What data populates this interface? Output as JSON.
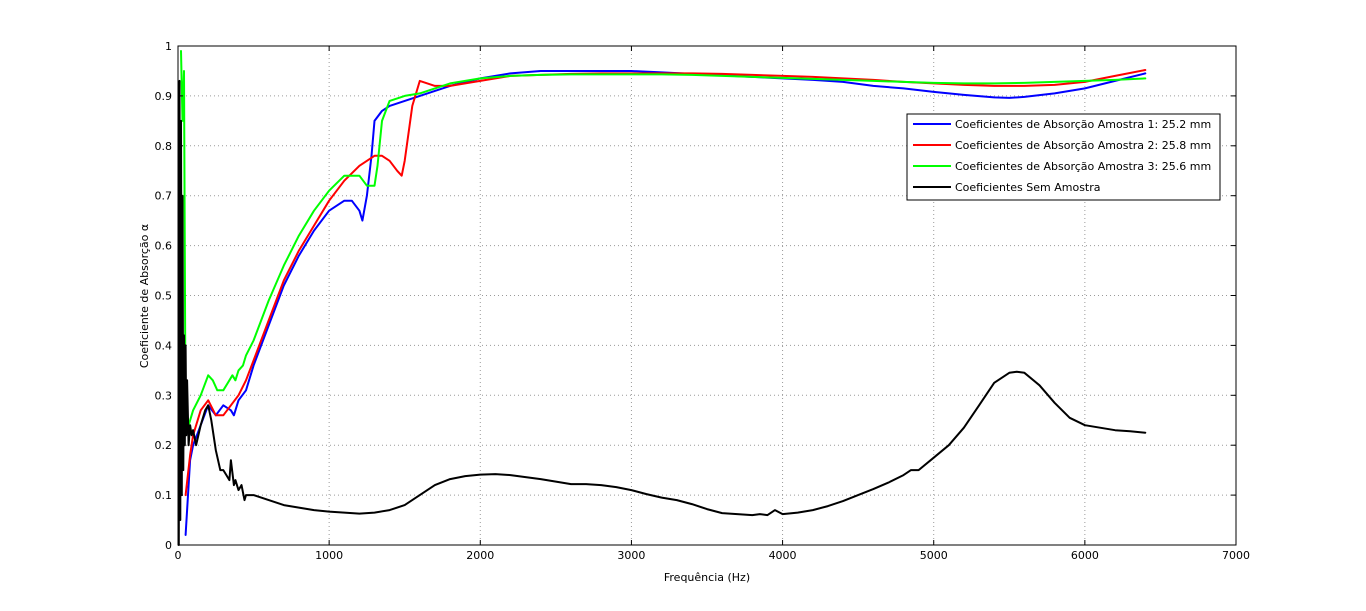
{
  "chart_data": {
    "type": "line",
    "title": "",
    "xlabel": "Frequência (Hz)",
    "ylabel": "Coeficiente de Absorção α",
    "xlim": [
      0,
      7000
    ],
    "ylim": [
      0,
      1
    ],
    "xticks": [
      0,
      1000,
      2000,
      3000,
      4000,
      5000,
      6000,
      7000
    ],
    "xtick_labels": [
      "0",
      "1000",
      "2000",
      "3000",
      "4000",
      "5000",
      "6000",
      "7000"
    ],
    "yticks": [
      0,
      0.1,
      0.2,
      0.3,
      0.4,
      0.5,
      0.6,
      0.7,
      0.8,
      0.9,
      1
    ],
    "ytick_labels": [
      "0",
      "0.1",
      "0.2",
      "0.3",
      "0.4",
      "0.5",
      "0.6",
      "0.7",
      "0.8",
      "0.9",
      "1"
    ],
    "grid": true,
    "legend_position": "top-right",
    "series": [
      {
        "name": "Coeficientes de Absorção Amostra 1: 25.2 mm",
        "color": "#0000ff",
        "x": [
          50,
          80,
          100,
          150,
          200,
          250,
          300,
          350,
          370,
          400,
          450,
          500,
          600,
          700,
          800,
          900,
          1000,
          1100,
          1150,
          1200,
          1220,
          1250,
          1280,
          1300,
          1350,
          1400,
          1500,
          1600,
          1700,
          1800,
          2000,
          2200,
          2400,
          2600,
          2800,
          3000,
          3200,
          3400,
          3600,
          3800,
          4000,
          4200,
          4400,
          4600,
          4800,
          5000,
          5200,
          5400,
          5500,
          5600,
          5800,
          6000,
          6200,
          6400
        ],
        "y": [
          0.02,
          0.17,
          0.2,
          0.24,
          0.28,
          0.26,
          0.28,
          0.27,
          0.26,
          0.29,
          0.31,
          0.36,
          0.44,
          0.52,
          0.58,
          0.63,
          0.67,
          0.69,
          0.69,
          0.67,
          0.65,
          0.7,
          0.78,
          0.85,
          0.87,
          0.88,
          0.89,
          0.9,
          0.91,
          0.92,
          0.935,
          0.945,
          0.95,
          0.95,
          0.95,
          0.95,
          0.947,
          0.944,
          0.941,
          0.938,
          0.935,
          0.932,
          0.928,
          0.92,
          0.915,
          0.908,
          0.902,
          0.897,
          0.896,
          0.898,
          0.905,
          0.915,
          0.93,
          0.945
        ]
      },
      {
        "name": "Coeficientes de Absorção Amostra 2: 25.8 mm",
        "color": "#ff0000",
        "x": [
          50,
          80,
          100,
          150,
          200,
          250,
          300,
          350,
          400,
          450,
          500,
          600,
          700,
          800,
          900,
          1000,
          1100,
          1200,
          1300,
          1350,
          1400,
          1450,
          1480,
          1500,
          1550,
          1600,
          1650,
          1700,
          1800,
          2000,
          2200,
          2400,
          2600,
          2800,
          3000,
          3200,
          3400,
          3600,
          3800,
          4000,
          4200,
          4400,
          4600,
          4800,
          5000,
          5200,
          5400,
          5600,
          5800,
          6000,
          6200,
          6400
        ],
        "y": [
          0.1,
          0.18,
          0.22,
          0.27,
          0.29,
          0.26,
          0.26,
          0.28,
          0.3,
          0.33,
          0.37,
          0.45,
          0.53,
          0.59,
          0.64,
          0.69,
          0.73,
          0.76,
          0.78,
          0.78,
          0.77,
          0.75,
          0.74,
          0.77,
          0.88,
          0.93,
          0.925,
          0.92,
          0.92,
          0.93,
          0.94,
          0.942,
          0.944,
          0.945,
          0.945,
          0.945,
          0.945,
          0.944,
          0.942,
          0.94,
          0.938,
          0.935,
          0.932,
          0.928,
          0.925,
          0.922,
          0.92,
          0.92,
          0.922,
          0.928,
          0.94,
          0.952
        ]
      },
      {
        "name": "Coeficientes de Absorção Amostra 3: 25.6 mm",
        "color": "#00ff00",
        "x": [
          20,
          30,
          40,
          50,
          80,
          100,
          150,
          200,
          230,
          260,
          300,
          340,
          360,
          380,
          400,
          430,
          450,
          500,
          600,
          700,
          800,
          900,
          1000,
          1100,
          1200,
          1250,
          1300,
          1320,
          1350,
          1400,
          1450,
          1500,
          1600,
          1700,
          1800,
          2000,
          2200,
          2400,
          2600,
          2800,
          3000,
          3200,
          3400,
          3600,
          3800,
          4000,
          4200,
          4400,
          4600,
          4800,
          5000,
          5200,
          5400,
          5600,
          5800,
          6000,
          6200,
          6400
        ],
        "y": [
          0.99,
          0.85,
          0.95,
          0.22,
          0.25,
          0.27,
          0.3,
          0.34,
          0.33,
          0.31,
          0.31,
          0.33,
          0.34,
          0.33,
          0.35,
          0.36,
          0.38,
          0.41,
          0.49,
          0.56,
          0.62,
          0.67,
          0.71,
          0.74,
          0.74,
          0.72,
          0.72,
          0.76,
          0.85,
          0.89,
          0.895,
          0.9,
          0.905,
          0.915,
          0.925,
          0.935,
          0.94,
          0.942,
          0.943,
          0.943,
          0.943,
          0.943,
          0.942,
          0.94,
          0.938,
          0.936,
          0.934,
          0.932,
          0.93,
          0.928,
          0.926,
          0.925,
          0.925,
          0.926,
          0.928,
          0.93,
          0.932,
          0.935
        ]
      },
      {
        "name": "Coeficientes Sem Amostra",
        "color": "#000000",
        "x": [
          5,
          10,
          15,
          20,
          25,
          30,
          35,
          40,
          45,
          50,
          55,
          60,
          70,
          80,
          90,
          100,
          120,
          150,
          180,
          200,
          220,
          250,
          280,
          300,
          320,
          340,
          350,
          370,
          380,
          400,
          420,
          440,
          450,
          500,
          600,
          700,
          800,
          900,
          1000,
          1100,
          1200,
          1300,
          1400,
          1500,
          1600,
          1700,
          1800,
          1900,
          2000,
          2100,
          2200,
          2300,
          2400,
          2500,
          2600,
          2700,
          2800,
          2900,
          3000,
          3100,
          3200,
          3300,
          3400,
          3500,
          3600,
          3700,
          3800,
          3850,
          3900,
          3950,
          4000,
          4100,
          4200,
          4300,
          4400,
          4500,
          4600,
          4700,
          4800,
          4850,
          4900,
          5000,
          5100,
          5200,
          5300,
          5400,
          5500,
          5550,
          5600,
          5700,
          5800,
          5900,
          6000,
          6100,
          6200,
          6300,
          6400
        ],
        "y": [
          0.0,
          0.93,
          0.05,
          0.85,
          0.1,
          0.7,
          0.15,
          0.42,
          0.2,
          0.4,
          0.22,
          0.33,
          0.2,
          0.24,
          0.22,
          0.23,
          0.2,
          0.24,
          0.27,
          0.28,
          0.25,
          0.19,
          0.15,
          0.15,
          0.14,
          0.13,
          0.17,
          0.12,
          0.13,
          0.11,
          0.12,
          0.09,
          0.1,
          0.1,
          0.09,
          0.08,
          0.075,
          0.07,
          0.067,
          0.065,
          0.063,
          0.065,
          0.07,
          0.08,
          0.1,
          0.12,
          0.132,
          0.138,
          0.141,
          0.142,
          0.14,
          0.136,
          0.132,
          0.127,
          0.122,
          0.122,
          0.12,
          0.116,
          0.11,
          0.102,
          0.095,
          0.09,
          0.082,
          0.072,
          0.064,
          0.062,
          0.06,
          0.062,
          0.06,
          0.07,
          0.062,
          0.065,
          0.07,
          0.078,
          0.088,
          0.1,
          0.112,
          0.125,
          0.14,
          0.15,
          0.15,
          0.175,
          0.2,
          0.235,
          0.28,
          0.325,
          0.345,
          0.347,
          0.345,
          0.32,
          0.285,
          0.255,
          0.24,
          0.235,
          0.23,
          0.228,
          0.225
        ]
      }
    ]
  }
}
